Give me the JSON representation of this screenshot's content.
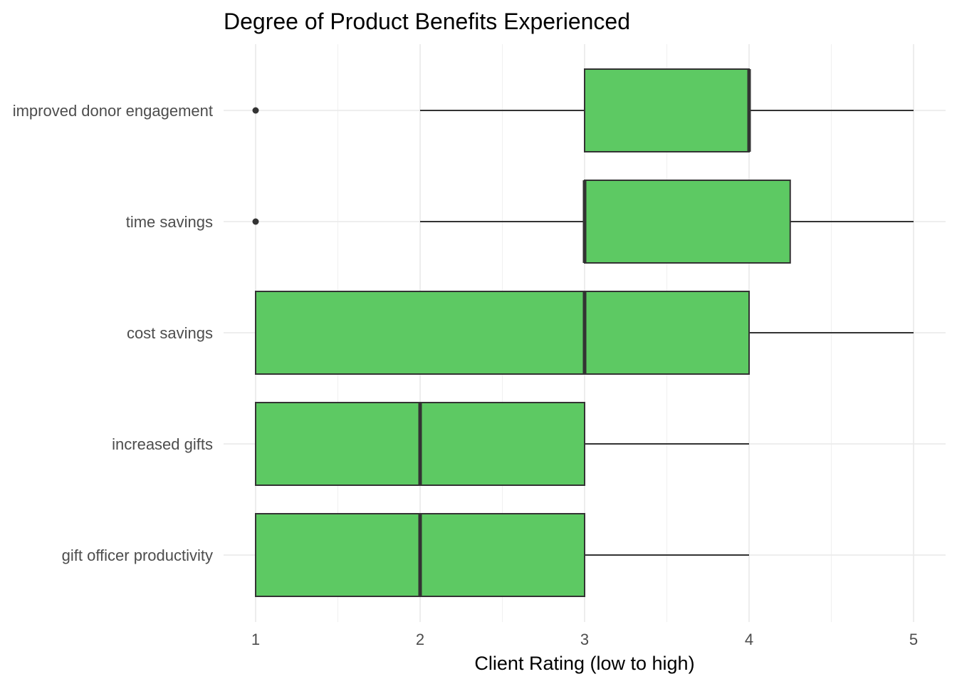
{
  "chart_data": {
    "type": "boxplot",
    "orientation": "horizontal",
    "title": "Degree of Product Benefits Experienced",
    "xlabel": "Client Rating (low to high)",
    "ylabel": "",
    "xlim": [
      1,
      5
    ],
    "xticks": [
      1,
      2,
      3,
      4,
      5
    ],
    "grid": true,
    "legend": "none",
    "fill_color": "#5DC963",
    "stroke_color": "#333333",
    "categories": [
      "improved donor engagement",
      "time savings",
      "cost savings",
      "increased gifts",
      "gift officer productivity"
    ],
    "boxes": [
      {
        "category": "improved donor engagement",
        "whisker_low": 2,
        "q1": 3,
        "median": 4,
        "q3": 4,
        "whisker_high": 5,
        "outliers": [
          1
        ]
      },
      {
        "category": "time savings",
        "whisker_low": 2,
        "q1": 3,
        "median": 3,
        "q3": 4.25,
        "whisker_high": 5,
        "outliers": [
          1
        ]
      },
      {
        "category": "cost savings",
        "whisker_low": 1,
        "q1": 1,
        "median": 3,
        "q3": 4,
        "whisker_high": 5,
        "outliers": []
      },
      {
        "category": "increased gifts",
        "whisker_low": 1,
        "q1": 1,
        "median": 2,
        "q3": 3,
        "whisker_high": 4,
        "outliers": []
      },
      {
        "category": "gift officer productivity",
        "whisker_low": 1,
        "q1": 1,
        "median": 2,
        "q3": 3,
        "whisker_high": 4,
        "outliers": []
      }
    ]
  }
}
